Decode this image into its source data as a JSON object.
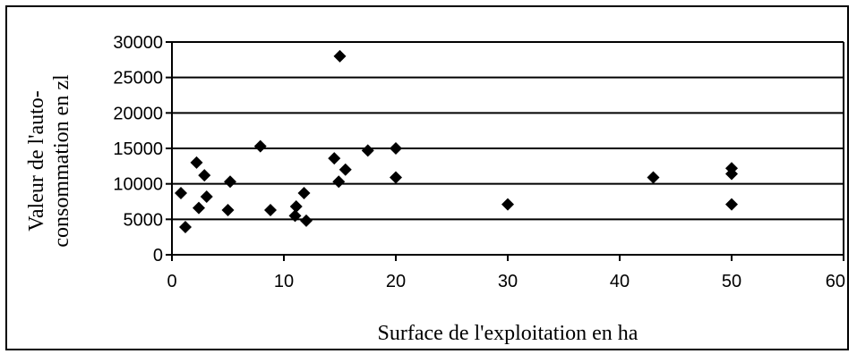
{
  "chart_data": {
    "type": "scatter",
    "title": "",
    "xlabel": "Surface de l'exploitation en ha",
    "ylabel_lines": [
      "Valeur de l'auto-",
      "consommation en zl"
    ],
    "xlim": [
      0,
      60
    ],
    "ylim": [
      0,
      30000
    ],
    "xticks": [
      0,
      10,
      20,
      30,
      40,
      50,
      60
    ],
    "yticks": [
      0,
      5000,
      10000,
      15000,
      20000,
      25000,
      30000
    ],
    "grid": "horizontal",
    "marker": "diamond",
    "marker_color": "#000000",
    "points": [
      {
        "x": 0.8,
        "y": 8700
      },
      {
        "x": 1.2,
        "y": 3900
      },
      {
        "x": 2.2,
        "y": 13000
      },
      {
        "x": 2.4,
        "y": 6600
      },
      {
        "x": 2.9,
        "y": 11200
      },
      {
        "x": 3.1,
        "y": 8200
      },
      {
        "x": 5.0,
        "y": 6300
      },
      {
        "x": 5.2,
        "y": 10300
      },
      {
        "x": 7.9,
        "y": 15300
      },
      {
        "x": 8.8,
        "y": 6300
      },
      {
        "x": 11.0,
        "y": 5500
      },
      {
        "x": 11.1,
        "y": 6800
      },
      {
        "x": 11.8,
        "y": 8700
      },
      {
        "x": 12.0,
        "y": 4800
      },
      {
        "x": 14.5,
        "y": 13600
      },
      {
        "x": 14.9,
        "y": 10300
      },
      {
        "x": 15.0,
        "y": 28000
      },
      {
        "x": 15.5,
        "y": 12000
      },
      {
        "x": 17.5,
        "y": 14700
      },
      {
        "x": 20.0,
        "y": 15000
      },
      {
        "x": 20.0,
        "y": 10900
      },
      {
        "x": 30.0,
        "y": 7100
      },
      {
        "x": 43.0,
        "y": 10900
      },
      {
        "x": 50.0,
        "y": 12200
      },
      {
        "x": 50.0,
        "y": 11400
      },
      {
        "x": 50.0,
        "y": 7100
      }
    ]
  }
}
